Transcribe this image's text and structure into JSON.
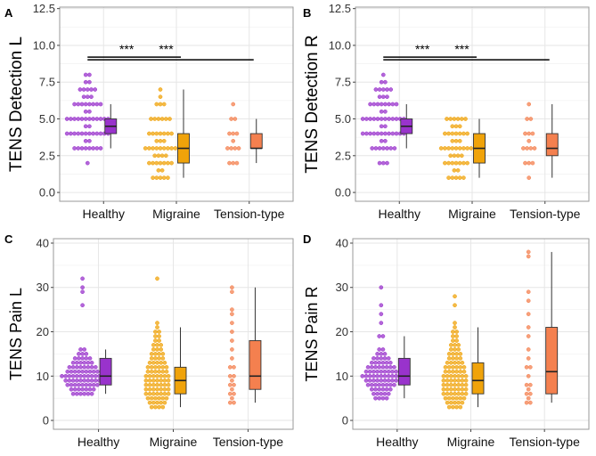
{
  "colors": {
    "healthy": "#9933cc",
    "migraine": "#f0a30a",
    "tension": "#f4804f",
    "grid": "#e6e6e6",
    "border": "#9a9a9a"
  },
  "chart_data": [
    {
      "panel_label": "A",
      "type": "box-dot",
      "ylabel": "TENS Detection L",
      "categories": [
        "Healthy",
        "Migraine",
        "Tension-type"
      ],
      "ylim": [
        -0.6,
        12.6
      ],
      "yticks": [
        0.0,
        2.5,
        5.0,
        7.5,
        10.0,
        12.5
      ],
      "ytick_labels": [
        "0.0",
        "2.5",
        "5.0",
        "7.5",
        "10.0",
        "12.5"
      ],
      "boxes": [
        {
          "whisker_low": 3,
          "q1": 4,
          "median": 4.5,
          "q3": 5,
          "whisker_high": 6
        },
        {
          "whisker_low": 1,
          "q1": 2,
          "median": 3,
          "q3": 4,
          "whisker_high": 7
        },
        {
          "whisker_low": 2,
          "q1": 3,
          "median": 3,
          "q3": 4,
          "whisker_high": 5
        }
      ],
      "points": [
        [
          [
            2,
            1
          ],
          [
            3,
            8
          ],
          [
            3.5,
            2
          ],
          [
            4,
            12
          ],
          [
            4.5,
            2
          ],
          [
            5,
            12
          ],
          [
            5.5,
            2
          ],
          [
            6,
            8
          ],
          [
            6.5,
            3
          ],
          [
            7,
            5
          ],
          [
            7.5,
            2
          ],
          [
            8,
            2
          ]
        ],
        [
          [
            1,
            5
          ],
          [
            1.5,
            2
          ],
          [
            2,
            7
          ],
          [
            2.5,
            4
          ],
          [
            3,
            9
          ],
          [
            3.5,
            3
          ],
          [
            4,
            7
          ],
          [
            5,
            6
          ],
          [
            6,
            3
          ],
          [
            6.5,
            1
          ],
          [
            7,
            1
          ]
        ],
        [
          [
            2,
            3
          ],
          [
            3,
            4
          ],
          [
            3.5,
            1
          ],
          [
            4,
            3
          ],
          [
            5,
            2
          ],
          [
            6,
            1
          ]
        ]
      ],
      "significance": [
        {
          "from": 0,
          "to": 1,
          "y": 9.2,
          "label": "***"
        },
        {
          "from": 0,
          "to": 2,
          "y": 9.2,
          "label": "***"
        }
      ]
    },
    {
      "panel_label": "B",
      "type": "box-dot",
      "ylabel": "TENS Detection R",
      "categories": [
        "Healthy",
        "Migraine",
        "Tension-type"
      ],
      "ylim": [
        -0.6,
        12.6
      ],
      "yticks": [
        0.0,
        2.5,
        5.0,
        7.5,
        10.0,
        12.5
      ],
      "ytick_labels": [
        "0.0",
        "2.5",
        "5.0",
        "7.5",
        "10.0",
        "12.5"
      ],
      "boxes": [
        {
          "whisker_low": 3,
          "q1": 4,
          "median": 4.5,
          "q3": 5,
          "whisker_high": 6
        },
        {
          "whisker_low": 1,
          "q1": 2,
          "median": 3,
          "q3": 4,
          "whisker_high": 5
        },
        {
          "whisker_low": 1,
          "q1": 2.5,
          "median": 3,
          "q3": 4,
          "whisker_high": 6
        }
      ],
      "points": [
        [
          [
            2,
            3
          ],
          [
            3,
            7
          ],
          [
            3.5,
            2
          ],
          [
            4,
            12
          ],
          [
            4.5,
            2
          ],
          [
            5,
            12
          ],
          [
            5.5,
            2
          ],
          [
            6,
            8
          ],
          [
            6.5,
            3
          ],
          [
            7,
            5
          ],
          [
            7.5,
            2
          ],
          [
            8,
            1
          ]
        ],
        [
          [
            1,
            5
          ],
          [
            1.5,
            2
          ],
          [
            2,
            7
          ],
          [
            2.5,
            4
          ],
          [
            3,
            9
          ],
          [
            3.5,
            3
          ],
          [
            4,
            7
          ],
          [
            4.5,
            3
          ],
          [
            5,
            6
          ]
        ],
        [
          [
            1,
            1
          ],
          [
            2,
            3
          ],
          [
            3,
            4
          ],
          [
            3.5,
            1
          ],
          [
            4,
            3
          ],
          [
            5,
            2
          ],
          [
            6,
            1
          ]
        ]
      ],
      "significance": [
        {
          "from": 0,
          "to": 1,
          "y": 9.2,
          "label": "***"
        },
        {
          "from": 0,
          "to": 2,
          "y": 9.2,
          "label": "***"
        }
      ]
    },
    {
      "panel_label": "C",
      "type": "box-dot",
      "ylabel": "TENS Pain L",
      "categories": [
        "Healthy",
        "Migraine",
        "Tension-type"
      ],
      "ylim": [
        -2,
        41
      ],
      "yticks": [
        0,
        10,
        20,
        30,
        40
      ],
      "ytick_labels": [
        "0",
        "10",
        "20",
        "30",
        "40"
      ],
      "boxes": [
        {
          "whisker_low": 6,
          "q1": 8,
          "median": 10,
          "q3": 14,
          "whisker_high": 16
        },
        {
          "whisker_low": 3,
          "q1": 6,
          "median": 9,
          "q3": 12,
          "whisker_high": 21
        },
        {
          "whisker_low": 4,
          "q1": 7,
          "median": 10,
          "q3": 18,
          "whisker_high": 30
        }
      ],
      "points": [
        [
          [
            6,
            6
          ],
          [
            7,
            7
          ],
          [
            8,
            9
          ],
          [
            9,
            10
          ],
          [
            10,
            12
          ],
          [
            11,
            9
          ],
          [
            12,
            8
          ],
          [
            13,
            6
          ],
          [
            14,
            5
          ],
          [
            15,
            3
          ],
          [
            16,
            2
          ],
          [
            26,
            1
          ],
          [
            29,
            1
          ],
          [
            30,
            1
          ],
          [
            32,
            1
          ]
        ],
        [
          [
            3,
            4
          ],
          [
            4,
            5
          ],
          [
            5,
            6
          ],
          [
            6,
            7
          ],
          [
            7,
            7
          ],
          [
            8,
            7
          ],
          [
            9,
            7
          ],
          [
            10,
            7
          ],
          [
            11,
            6
          ],
          [
            12,
            6
          ],
          [
            13,
            5
          ],
          [
            14,
            4
          ],
          [
            15,
            4
          ],
          [
            16,
            3
          ],
          [
            17,
            3
          ],
          [
            18,
            2
          ],
          [
            19,
            2
          ],
          [
            20,
            2
          ],
          [
            21,
            1
          ],
          [
            22,
            1
          ],
          [
            32,
            1
          ]
        ],
        [
          [
            4,
            2
          ],
          [
            5,
            1
          ],
          [
            6,
            2
          ],
          [
            7,
            1
          ],
          [
            8,
            2
          ],
          [
            9,
            1
          ],
          [
            10,
            2
          ],
          [
            12,
            2
          ],
          [
            14,
            1
          ],
          [
            16,
            1
          ],
          [
            18,
            1
          ],
          [
            20,
            1
          ],
          [
            22,
            1
          ],
          [
            24,
            1
          ],
          [
            25,
            1
          ],
          [
            29,
            1
          ],
          [
            30,
            1
          ]
        ]
      ],
      "significance": []
    },
    {
      "panel_label": "D",
      "type": "box-dot",
      "ylabel": "TENS Pain R",
      "categories": [
        "Healthy",
        "Migraine",
        "Tension-type"
      ],
      "ylim": [
        -2,
        41
      ],
      "yticks": [
        0,
        10,
        20,
        30,
        40
      ],
      "ytick_labels": [
        "0",
        "10",
        "20",
        "30",
        "40"
      ],
      "boxes": [
        {
          "whisker_low": 5,
          "q1": 8,
          "median": 10,
          "q3": 14,
          "whisker_high": 19
        },
        {
          "whisker_low": 3,
          "q1": 6,
          "median": 9,
          "q3": 13,
          "whisker_high": 21
        },
        {
          "whisker_low": 4,
          "q1": 6,
          "median": 11,
          "q3": 21,
          "whisker_high": 38
        }
      ],
      "points": [
        [
          [
            5,
            4
          ],
          [
            6,
            5
          ],
          [
            7,
            6
          ],
          [
            8,
            8
          ],
          [
            9,
            9
          ],
          [
            10,
            11
          ],
          [
            11,
            9
          ],
          [
            12,
            8
          ],
          [
            13,
            6
          ],
          [
            14,
            5
          ],
          [
            15,
            3
          ],
          [
            16,
            2
          ],
          [
            19,
            2
          ],
          [
            22,
            1
          ],
          [
            24,
            1
          ],
          [
            26,
            1
          ],
          [
            30,
            1
          ]
        ],
        [
          [
            3,
            4
          ],
          [
            4,
            5
          ],
          [
            5,
            6
          ],
          [
            6,
            7
          ],
          [
            7,
            7
          ],
          [
            8,
            7
          ],
          [
            9,
            7
          ],
          [
            10,
            7
          ],
          [
            11,
            6
          ],
          [
            12,
            6
          ],
          [
            13,
            5
          ],
          [
            14,
            4
          ],
          [
            15,
            4
          ],
          [
            16,
            3
          ],
          [
            17,
            3
          ],
          [
            18,
            2
          ],
          [
            19,
            2
          ],
          [
            20,
            2
          ],
          [
            21,
            1
          ],
          [
            22,
            1
          ],
          [
            26,
            1
          ],
          [
            28,
            1
          ]
        ],
        [
          [
            4,
            2
          ],
          [
            5,
            1
          ],
          [
            6,
            2
          ],
          [
            7,
            1
          ],
          [
            8,
            2
          ],
          [
            10,
            1
          ],
          [
            12,
            2
          ],
          [
            14,
            1
          ],
          [
            16,
            1
          ],
          [
            19,
            1
          ],
          [
            21,
            1
          ],
          [
            24,
            1
          ],
          [
            27,
            1
          ],
          [
            29,
            1
          ],
          [
            37,
            1
          ],
          [
            38,
            1
          ]
        ]
      ],
      "significance": []
    }
  ]
}
